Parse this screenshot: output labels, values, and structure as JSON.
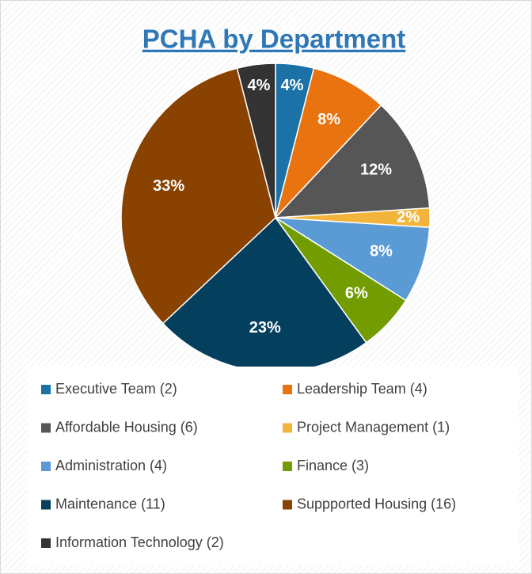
{
  "chart_data": {
    "type": "pie",
    "title": "PCHA by Department",
    "categories": [
      "Executive Team (2)",
      "Leadership Team (4)",
      "Affordable Housing (6)",
      "Project Management (1)",
      "Administration (4)",
      "Finance (3)",
      "Maintenance (11)",
      "Suppported Housing (16)",
      "Information Technology (2)"
    ],
    "values": [
      4,
      8,
      12,
      2,
      8,
      6,
      23,
      33,
      4
    ],
    "value_labels": [
      "4%",
      "8%",
      "12%",
      "2%",
      "8%",
      "6%",
      "23%",
      "33%",
      "4%"
    ],
    "colors": [
      "#1c72a6",
      "#e8730f",
      "#565656",
      "#f3b43c",
      "#5b9bd5",
      "#739c00",
      "#053f5e",
      "#8a4200",
      "#333333"
    ],
    "legend": "bottom"
  }
}
